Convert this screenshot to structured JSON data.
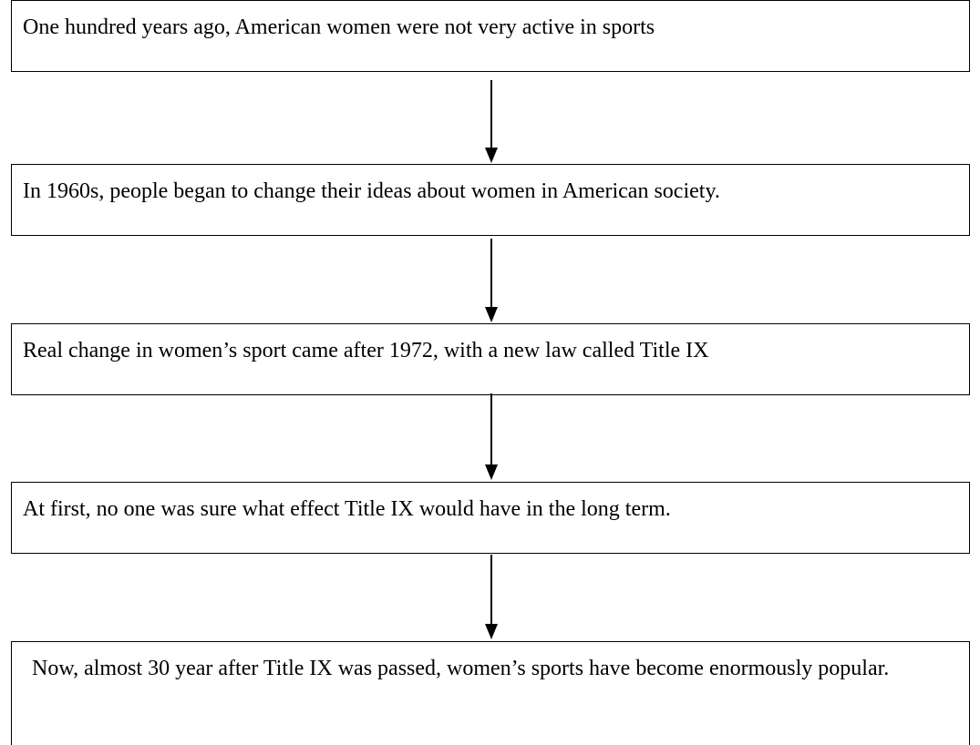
{
  "nodes": [
    {
      "label": "One hundred years ago, American women were not very active in sports"
    },
    {
      "label": "In 1960s, people began to change their ideas about women in American society."
    },
    {
      "label": "Real change in women’s sport came after 1972, with a new law called Title IX"
    },
    {
      "label": "At first, no one was sure what effect Title IX would have in the long term."
    },
    {
      "label": "Now, almost 30 year after Title IX was passed, women’s sports have become enormously popular."
    }
  ]
}
